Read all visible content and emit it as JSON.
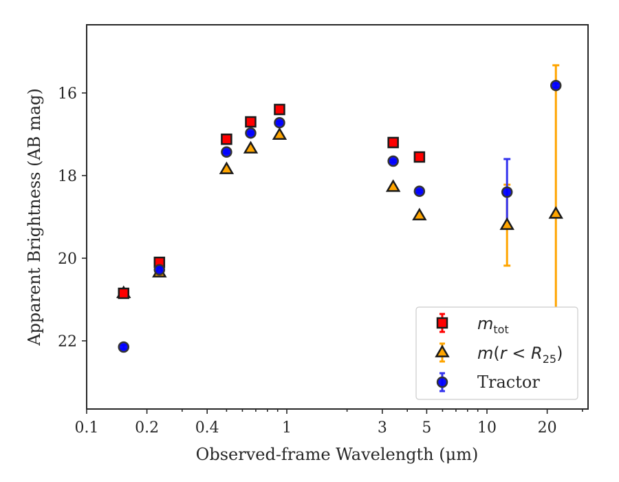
{
  "chart_data": {
    "type": "scatter",
    "xlabel": "Observed-frame Wavelength (μm)",
    "ylabel": "Apparent Brightness (AB mag)",
    "xscale": "log",
    "xlim": [
      0.1,
      32
    ],
    "ylim": [
      23.65,
      14.35
    ],
    "y_inverted": true,
    "x_ticks": [
      {
        "value": 0.1,
        "label": "0.1"
      },
      {
        "value": 0.2,
        "label": "0.2"
      },
      {
        "value": 0.4,
        "label": "0.4"
      },
      {
        "value": 1,
        "label": "1"
      },
      {
        "value": 3,
        "label": "3"
      },
      {
        "value": 5,
        "label": "5"
      },
      {
        "value": 10,
        "label": "10"
      },
      {
        "value": 20,
        "label": "20"
      }
    ],
    "y_ticks": [
      16,
      18,
      20,
      22
    ],
    "grid": false,
    "legend_position": "bottom-right",
    "series": [
      {
        "legend_label": "m_tot",
        "marker": "square",
        "color": "#ff0000",
        "edge_color": "#1a1a1a",
        "err_color": "#ff0000",
        "points": [
          {
            "x": 0.153,
            "y": 20.85,
            "err": 0.05
          },
          {
            "x": 0.231,
            "y": 20.1,
            "err": 0.05
          },
          {
            "x": 0.5,
            "y": 17.12,
            "err": 0.03
          },
          {
            "x": 0.66,
            "y": 16.7,
            "err": 0.03
          },
          {
            "x": 0.92,
            "y": 16.4,
            "err": 0.03
          },
          {
            "x": 3.4,
            "y": 17.2,
            "err": 0.03
          },
          {
            "x": 4.6,
            "y": 17.55,
            "err": 0.03
          }
        ]
      },
      {
        "legend_label": "m(r < R_25)",
        "marker": "triangle",
        "color": "#ffa500",
        "edge_color": "#1a1a1a",
        "err_color": "#ffa500",
        "points": [
          {
            "x": 0.153,
            "y": 20.85,
            "err": 0.05
          },
          {
            "x": 0.231,
            "y": 20.35,
            "err": 0.05
          },
          {
            "x": 0.5,
            "y": 17.85,
            "err": 0.03
          },
          {
            "x": 0.66,
            "y": 17.35,
            "err": 0.03
          },
          {
            "x": 0.92,
            "y": 17.02,
            "err": 0.03
          },
          {
            "x": 3.4,
            "y": 18.28,
            "err": 0.03
          },
          {
            "x": 4.6,
            "y": 18.97,
            "err": 0.03
          },
          {
            "x": 12.6,
            "y": 19.2,
            "err": 0.98
          },
          {
            "x": 22.1,
            "y": 18.93,
            "err": 3.6
          }
        ]
      },
      {
        "legend_label": "Tractor",
        "marker": "circle",
        "color": "#0000ff",
        "edge_color": "#333333",
        "err_color": "#3333ee",
        "points": [
          {
            "x": 0.153,
            "y": 22.15,
            "err": 0.05
          },
          {
            "x": 0.231,
            "y": 20.28,
            "err": 0.05
          },
          {
            "x": 0.5,
            "y": 17.43,
            "err": 0.03
          },
          {
            "x": 0.66,
            "y": 16.97,
            "err": 0.03
          },
          {
            "x": 0.92,
            "y": 16.72,
            "err": 0.03
          },
          {
            "x": 3.4,
            "y": 17.65,
            "err": 0.03
          },
          {
            "x": 4.6,
            "y": 18.38,
            "err": 0.03
          },
          {
            "x": 12.6,
            "y": 18.4,
            "err": 0.8
          },
          {
            "x": 22.1,
            "y": 15.82,
            "err": 0.05
          }
        ]
      }
    ]
  }
}
